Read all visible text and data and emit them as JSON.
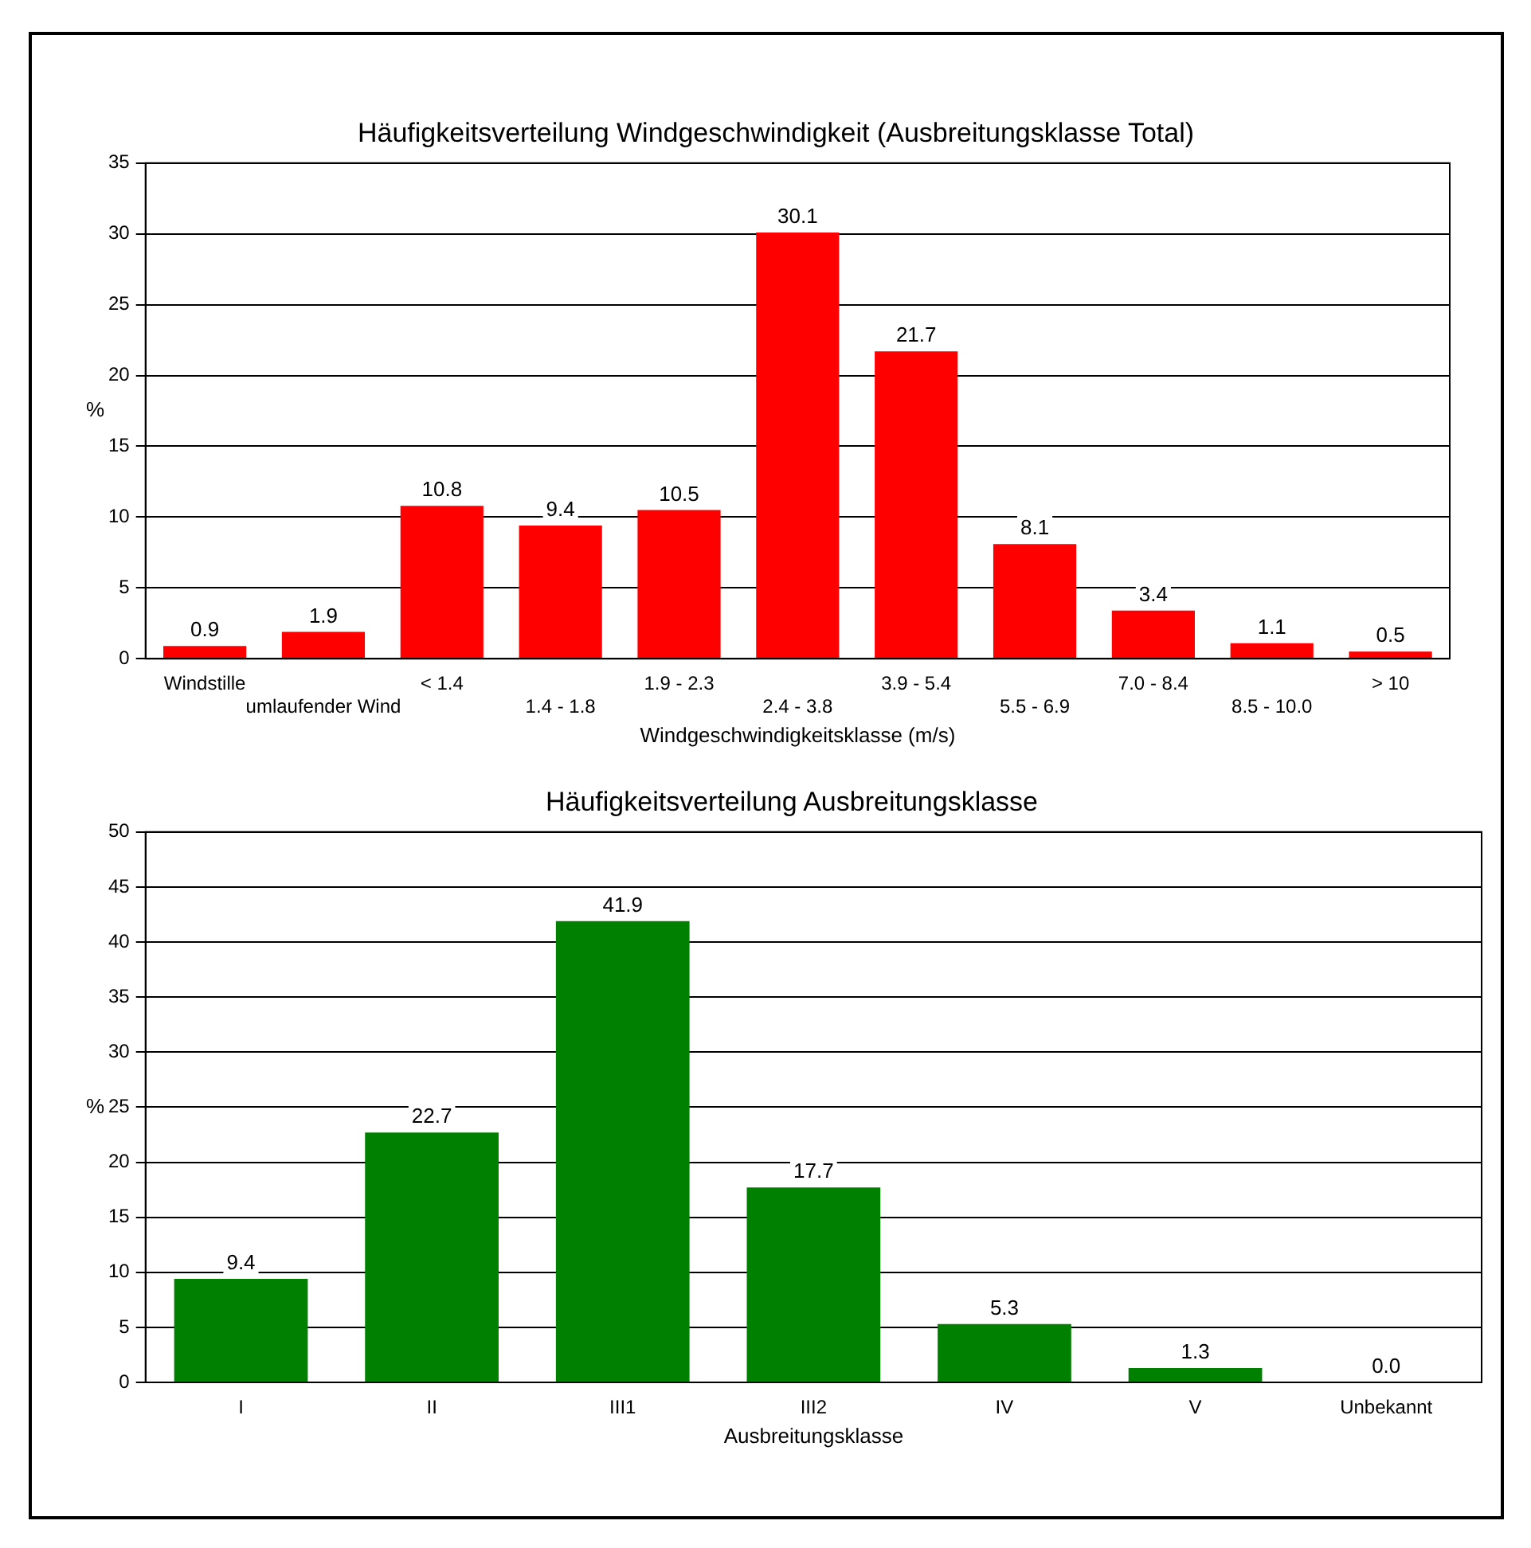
{
  "chart_data": [
    {
      "type": "bar",
      "title": "Häufigkeitsverteilung Windgeschwindigkeit (Ausbreitungsklasse Total)",
      "xlabel": "Windgeschwindigkeitsklasse (m/s)",
      "ylabel": "%",
      "categories": [
        "Windstille",
        "umlaufender Wind",
        "< 1.4",
        "1.4 - 1.8",
        "1.9 - 2.3",
        "2.4 - 3.8",
        "3.9 - 5.4",
        "5.5 - 6.9",
        "7.0 - 8.4",
        "8.5 - 10.0",
        "> 10"
      ],
      "values": [
        0.9,
        1.9,
        10.8,
        9.4,
        10.5,
        30.1,
        21.7,
        8.1,
        3.4,
        1.1,
        0.5
      ],
      "color": "#ff0000",
      "value_labels": [
        "0.9",
        "1.9",
        "10.8",
        "9.4",
        "10.5",
        "30.1",
        "21.7",
        "8.1",
        "3.4",
        "1.1",
        "0.5"
      ],
      "ylim": [
        0,
        35
      ],
      "yticks": [
        0,
        5,
        10,
        15,
        20,
        25,
        30,
        35
      ],
      "grid": "y",
      "legend": false
    },
    {
      "type": "bar",
      "title": "Häufigkeitsverteilung Ausbreitungsklasse",
      "xlabel": "Ausbreitungsklasse",
      "ylabel": "%",
      "categories": [
        "I",
        "II",
        "III1",
        "III2",
        "IV",
        "V",
        "Unbekannt"
      ],
      "values": [
        9.4,
        22.7,
        41.9,
        17.7,
        5.3,
        1.3,
        0.0
      ],
      "color": "#008000",
      "value_labels": [
        "9.4",
        "22.7",
        "41.9",
        "17.7",
        "5.3",
        "1.3",
        "0.0"
      ],
      "ylim": [
        0,
        50
      ],
      "yticks": [
        0,
        5,
        10,
        15,
        20,
        25,
        30,
        35,
        40,
        45,
        50
      ],
      "grid": "y",
      "legend": false
    }
  ]
}
